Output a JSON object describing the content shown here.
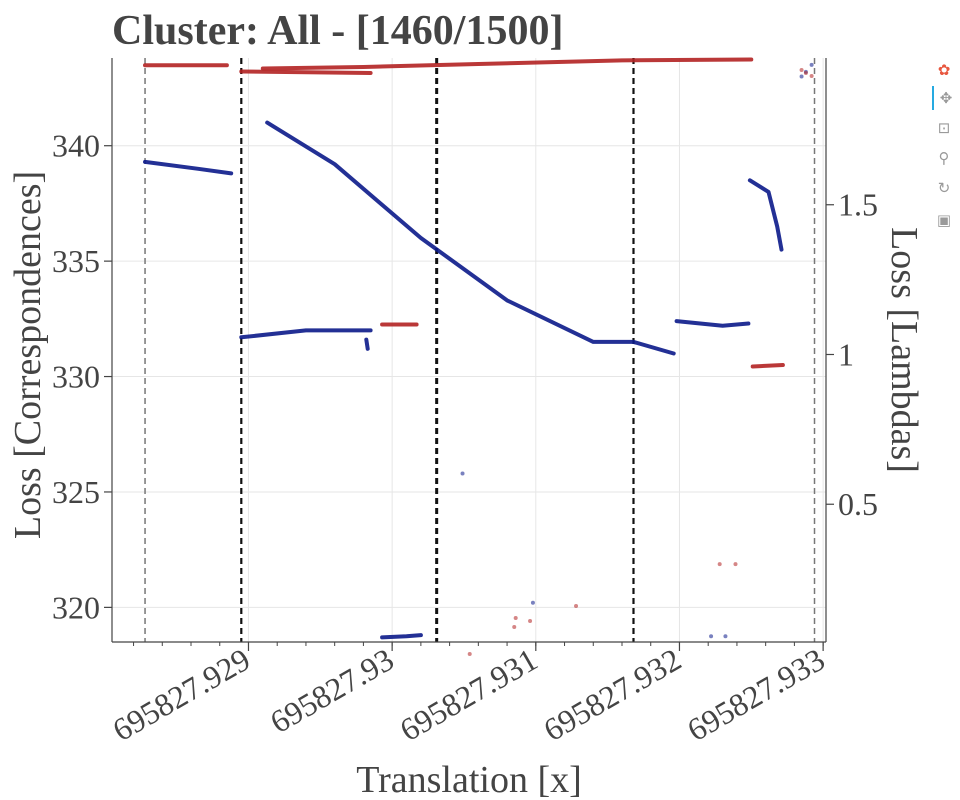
{
  "chart_data": {
    "type": "scatter",
    "title": "Cluster: All - [1460/1500]",
    "xlabel": "Translation [x]",
    "ylabel": "Loss [Correspondences]",
    "y2label": "Loss [Lambdas]",
    "x_offset": 695827.929,
    "xlim_rel": [
      -0.00095,
      0.00402
    ],
    "ylim": [
      318.5,
      343.8
    ],
    "y2lim": [
      0.04,
      1.99
    ],
    "x_ticks": [
      {
        "rel": 0.0,
        "label": "695827.929"
      },
      {
        "rel": 0.001,
        "label": "695827.93"
      },
      {
        "rel": 0.002,
        "label": "695827.931"
      },
      {
        "rel": 0.003,
        "label": "695827.932"
      },
      {
        "rel": 0.004,
        "label": "695827.933"
      }
    ],
    "y_ticks": [
      320,
      325,
      330,
      335,
      340
    ],
    "y2_ticks": [
      {
        "value": 0.5,
        "label": "0.5"
      },
      {
        "value": 1.0,
        "label": "1"
      },
      {
        "value": 1.5,
        "label": "1.5"
      }
    ],
    "vlines": [
      {
        "rel": -0.00072,
        "style": "dashed",
        "color": "#777777",
        "width": 1.5
      },
      {
        "rel": -5e-05,
        "style": "dashed",
        "color": "#111111",
        "width": 2.2
      },
      {
        "rel": 0.00131,
        "style": "dashed",
        "color": "#111111",
        "width": 3
      },
      {
        "rel": 0.00268,
        "style": "dashed",
        "color": "#111111",
        "width": 2.2
      },
      {
        "rel": 0.00394,
        "style": "dashed",
        "color": "#777777",
        "width": 1.5
      }
    ],
    "series": [
      {
        "name": "Loss [Correspondences]",
        "axis": "left",
        "color": "#0b1a8a",
        "segments": [
          {
            "points": [
              [
                -0.00072,
                339.3
              ],
              [
                -0.00035,
                339.0
              ],
              [
                -0.00012,
                338.8
              ]
            ]
          },
          {
            "points": [
              [
                -5e-05,
                331.7
              ],
              [
                0.0004,
                332.0
              ],
              [
                0.00085,
                332.0
              ]
            ]
          },
          {
            "points": [
              [
                0.00013,
                341.0
              ],
              [
                0.0006,
                339.2
              ],
              [
                0.0012,
                336.0
              ],
              [
                0.0018,
                333.3
              ],
              [
                0.0024,
                331.5
              ],
              [
                0.00268,
                331.5
              ],
              [
                0.00296,
                331.0
              ]
            ]
          },
          {
            "points": [
              [
                0.00298,
                332.4
              ],
              [
                0.0033,
                332.2
              ],
              [
                0.00348,
                332.3
              ]
            ]
          },
          {
            "points": [
              [
                0.00349,
                338.5
              ],
              [
                0.00362,
                338.0
              ],
              [
                0.00368,
                336.5
              ],
              [
                0.00371,
                335.5
              ]
            ]
          },
          {
            "points": [
              [
                0.00082,
                331.6
              ],
              [
                0.00083,
                331.2
              ]
            ]
          },
          {
            "points": [
              [
                0.00093,
                318.7
              ],
              [
                0.0011,
                318.75
              ],
              [
                0.0012,
                318.8
              ]
            ]
          }
        ],
        "scatter": [
          [
            0.00149,
            325.8
          ],
          [
            0.00198,
            320.2
          ],
          [
            0.00322,
            318.75
          ],
          [
            0.00332,
            318.75
          ],
          [
            0.00385,
            343.0
          ],
          [
            0.00388,
            343.2
          ],
          [
            0.00392,
            343.5
          ]
        ]
      },
      {
        "name": "Loss [Lambdas]",
        "axis": "right",
        "color": "#b22222",
        "segments": [
          {
            "points": [
              [
                -0.00072,
                1.966
              ],
              [
                -0.00015,
                1.966
              ]
            ]
          },
          {
            "points": [
              [
                -5e-05,
                1.945
              ],
              [
                0.00085,
                1.94
              ]
            ]
          },
          {
            "points": [
              [
                0.0001,
                1.955
              ],
              [
                0.0008,
                1.96
              ],
              [
                0.0016,
                1.97
              ],
              [
                0.0026,
                1.982
              ],
              [
                0.0035,
                1.985
              ]
            ]
          },
          {
            "points": [
              [
                0.00093,
                1.1
              ],
              [
                0.00117,
                1.1
              ]
            ]
          },
          {
            "points": [
              [
                0.00351,
                0.96
              ],
              [
                0.00372,
                0.965
              ]
            ]
          }
        ],
        "scatter": [
          [
            0.00385,
            1.95
          ],
          [
            0.00388,
            1.94
          ],
          [
            0.00392,
            1.93
          ],
          [
            0.00328,
            0.3
          ],
          [
            0.00339,
            0.3
          ],
          [
            0.00186,
            0.12
          ],
          [
            0.00196,
            0.11
          ],
          [
            0.00228,
            0.16
          ],
          [
            0.00185,
            0.09
          ],
          [
            0.00154,
            0.0
          ]
        ]
      }
    ]
  },
  "toolbar": {
    "tools": [
      {
        "name": "bokeh-logo-icon",
        "glyph": "✿",
        "color": "#e8573f"
      },
      {
        "name": "pan-icon",
        "glyph": "✥",
        "color": "#9a9a9a"
      },
      {
        "name": "box-zoom-icon",
        "glyph": "⊡",
        "color": "#9a9a9a"
      },
      {
        "name": "wheel-zoom-icon",
        "glyph": "⚲",
        "color": "#9a9a9a"
      },
      {
        "name": "reset-icon",
        "glyph": "↻",
        "color": "#9a9a9a"
      },
      {
        "name": "save-icon",
        "glyph": "▣",
        "color": "#9a9a9a"
      }
    ]
  }
}
